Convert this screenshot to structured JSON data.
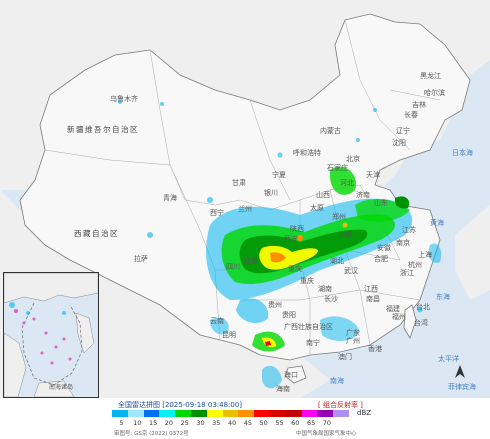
{
  "regions": [
    {
      "name": "新疆维吾尔自治区",
      "kind": "big"
    },
    {
      "name": "西藏自治区",
      "kind": "big"
    },
    {
      "name": "青海",
      "kind": "prov"
    },
    {
      "name": "甘肃",
      "kind": "prov"
    },
    {
      "name": "内蒙古",
      "kind": "prov"
    },
    {
      "name": "黑龙江",
      "kind": "prov"
    },
    {
      "name": "吉林",
      "kind": "prov"
    },
    {
      "name": "辽宁",
      "kind": "prov"
    },
    {
      "name": "北京",
      "kind": "prov"
    },
    {
      "name": "天津",
      "kind": "prov"
    },
    {
      "name": "河北",
      "kind": "prov"
    },
    {
      "name": "山西",
      "kind": "prov"
    },
    {
      "name": "宁夏",
      "kind": "prov"
    },
    {
      "name": "陕西",
      "kind": "prov"
    },
    {
      "name": "河南",
      "kind": "prov"
    },
    {
      "name": "山东",
      "kind": "prov"
    },
    {
      "name": "江苏",
      "kind": "prov"
    },
    {
      "name": "安徽",
      "kind": "prov"
    },
    {
      "name": "上海",
      "kind": "prov"
    },
    {
      "name": "浙江",
      "kind": "prov"
    },
    {
      "name": "湖北",
      "kind": "prov"
    },
    {
      "name": "湖南",
      "kind": "prov"
    },
    {
      "name": "江西",
      "kind": "prov"
    },
    {
      "name": "福建",
      "kind": "prov"
    },
    {
      "name": "台湾",
      "kind": "prov"
    },
    {
      "name": "四川",
      "kind": "prov"
    },
    {
      "name": "重庆",
      "kind": "prov"
    },
    {
      "name": "贵州",
      "kind": "prov"
    },
    {
      "name": "云南",
      "kind": "prov"
    },
    {
      "name": "广西壮族自治区",
      "kind": "prov"
    },
    {
      "name": "广东",
      "kind": "prov"
    },
    {
      "name": "香港",
      "kind": "prov"
    },
    {
      "name": "澳门",
      "kind": "prov"
    },
    {
      "name": "海南",
      "kind": "prov"
    }
  ],
  "cities": [
    "乌鲁木齐",
    "哈尔滨",
    "长春",
    "沈阳",
    "呼和浩特",
    "石家庄",
    "济南",
    "郑州",
    "西安",
    "兰州",
    "西宁",
    "银川",
    "太原",
    "南京",
    "合肥",
    "杭州",
    "武汉",
    "长沙",
    "南昌",
    "福州",
    "广州",
    "南宁",
    "贵阳",
    "昆明",
    "成都",
    "重庆",
    "拉萨",
    "海口",
    "台北"
  ],
  "seas": [
    "日本海",
    "黄海",
    "东海",
    "太平洋",
    "南海",
    "菲律宾海"
  ],
  "inset": {
    "label": "南海诸岛"
  },
  "legend": {
    "title": "全国雷达拼图 [2025-09-18 03:48:00]",
    "product": "[ 组合反射率 ]",
    "unit": "dBZ",
    "approval": "审图号: GS京 (2022) 0372号",
    "source": "中国气象局国家气象中心",
    "ticks": [
      "5",
      "10",
      "15",
      "20",
      "25",
      "30",
      "35",
      "40",
      "45",
      "50",
      "55",
      "60",
      "65",
      "70"
    ],
    "colors": [
      "#00b4f0",
      "#9fe6ff",
      "#0070f0",
      "#05f0f0",
      "#00d800",
      "#009000",
      "#ffff00",
      "#e7c000",
      "#ff9000",
      "#ff0000",
      "#d60000",
      "#c00000",
      "#ff00f0",
      "#9600b4",
      "#ad90f0"
    ]
  }
}
